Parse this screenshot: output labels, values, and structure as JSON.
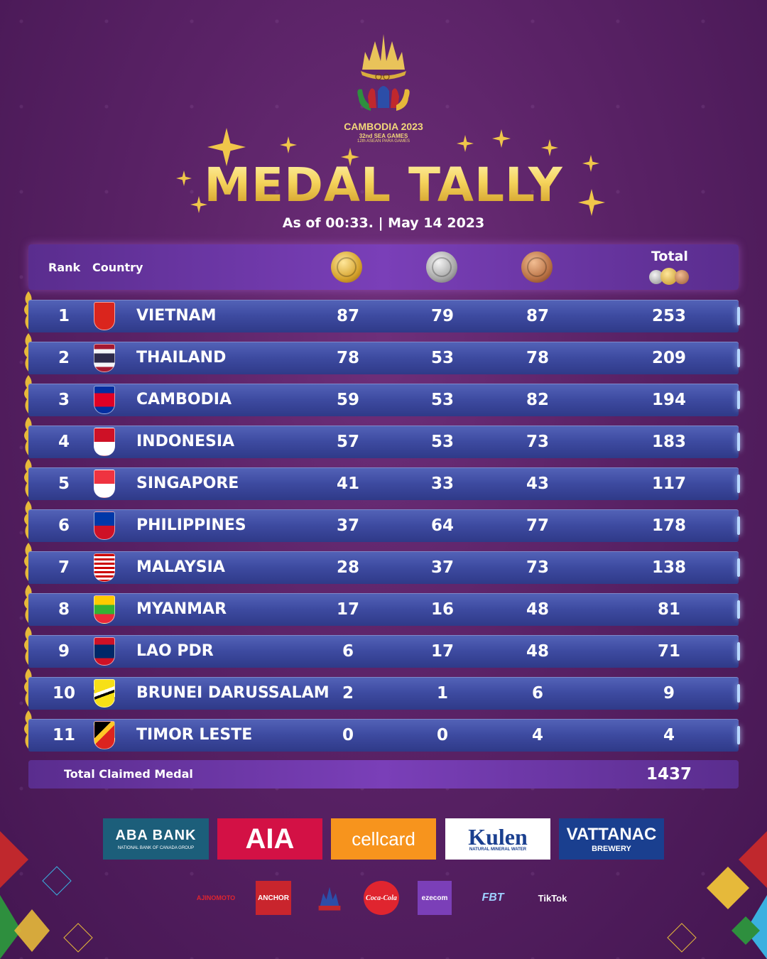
{
  "logo": {
    "line1": "CAMBODIA 2023",
    "line2": "32nd SEA GAMES",
    "line3": "12th ASEAN PARA GAMES"
  },
  "title": "MEDAL TALLY",
  "subtitle": "As of 00:33. | May 14 2023",
  "table": {
    "headers": {
      "rank": "Rank",
      "country": "Country",
      "total": "Total"
    },
    "rows": [
      {
        "rank": "1",
        "country": "VIETNAM",
        "gold": "87",
        "silver": "79",
        "bronze": "87",
        "total": "253"
      },
      {
        "rank": "2",
        "country": "THAILAND",
        "gold": "78",
        "silver": "53",
        "bronze": "78",
        "total": "209"
      },
      {
        "rank": "3",
        "country": "CAMBODIA",
        "gold": "59",
        "silver": "53",
        "bronze": "82",
        "total": "194"
      },
      {
        "rank": "4",
        "country": "INDONESIA",
        "gold": "57",
        "silver": "53",
        "bronze": "73",
        "total": "183"
      },
      {
        "rank": "5",
        "country": "SINGAPORE",
        "gold": "41",
        "silver": "33",
        "bronze": "43",
        "total": "117"
      },
      {
        "rank": "6",
        "country": "PHILIPPINES",
        "gold": "37",
        "silver": "64",
        "bronze": "77",
        "total": "178"
      },
      {
        "rank": "7",
        "country": "MALAYSIA",
        "gold": "28",
        "silver": "37",
        "bronze": "73",
        "total": "138"
      },
      {
        "rank": "8",
        "country": "MYANMAR",
        "gold": "17",
        "silver": "16",
        "bronze": "48",
        "total": "81"
      },
      {
        "rank": "9",
        "country": "LAO PDR",
        "gold": "6",
        "silver": "17",
        "bronze": "48",
        "total": "71"
      },
      {
        "rank": "10",
        "country": "BRUNEI DARUSSALAM",
        "gold": "2",
        "silver": "1",
        "bronze": "6",
        "total": "9"
      },
      {
        "rank": "11",
        "country": "TIMOR LESTE",
        "gold": "0",
        "silver": "0",
        "bronze": "4",
        "total": "4"
      }
    ],
    "total_label": "Total Claimed Medal",
    "total_value": "1437"
  },
  "sponsors": {
    "aba_main": "ABA BANK",
    "aba_sub": "NATIONAL BANK OF CANADA GROUP",
    "aia": "AIA",
    "cellcard": "cellcard",
    "kulen": "Kulen",
    "kulen_sub": "NATURAL MINERAL WATER",
    "vattanac": "VATTANAC",
    "vattanac_sub": "BREWERY",
    "small": [
      "AJINOMOTO",
      "ANCHOR",
      "Coca-Cola",
      "ezecom",
      "FBT",
      "TikTok"
    ]
  },
  "colors": {
    "background": "#5a2266",
    "gold_text": "#f5d35b",
    "row_blue": "#3d4aa0",
    "header_purple": "#7a3fb8"
  }
}
